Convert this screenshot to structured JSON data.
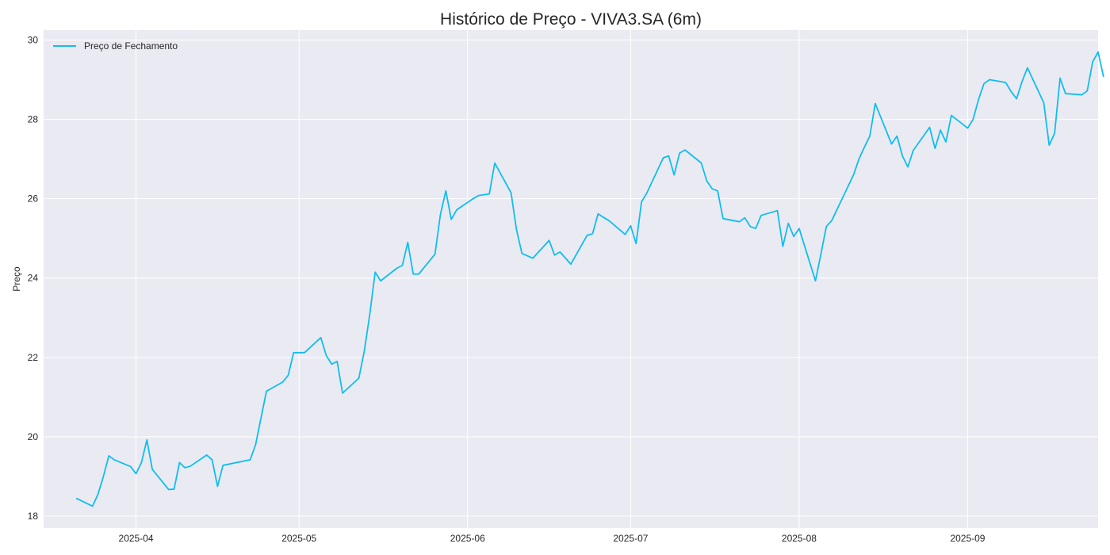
{
  "chart_data": {
    "type": "line",
    "title": "Histórico de Preço - VIVA3.SA (6m)",
    "xlabel": "",
    "ylabel": "Preço",
    "ylim": [
      17.7,
      30.25
    ],
    "xlim": [
      "2025-03-15",
      "2025-09-25"
    ],
    "grid": true,
    "legend_position": "top-left",
    "background_color": "#eaeaf2",
    "grid_color": "#ffffff",
    "y_ticks": [
      18,
      20,
      22,
      24,
      26,
      28,
      30
    ],
    "x_ticks": [
      {
        "date": "2025-04-01",
        "label": "2025-04"
      },
      {
        "date": "2025-05-01",
        "label": "2025-05"
      },
      {
        "date": "2025-06-01",
        "label": "2025-06"
      },
      {
        "date": "2025-07-01",
        "label": "2025-07"
      },
      {
        "date": "2025-08-01",
        "label": "2025-08"
      },
      {
        "date": "2025-09-01",
        "label": "2025-09"
      }
    ],
    "series": [
      {
        "name": "Preço de Fechamento",
        "color": "#10bdf0",
        "points": [
          [
            "2025-03-21",
            18.45
          ],
          [
            "2025-03-24",
            18.25
          ],
          [
            "2025-03-25",
            18.55
          ],
          [
            "2025-03-26",
            19.0
          ],
          [
            "2025-03-27",
            19.52
          ],
          [
            "2025-03-28",
            19.42
          ],
          [
            "2025-03-31",
            19.25
          ],
          [
            "2025-04-01",
            19.07
          ],
          [
            "2025-04-02",
            19.35
          ],
          [
            "2025-04-03",
            19.92
          ],
          [
            "2025-04-04",
            19.18
          ],
          [
            "2025-04-07",
            18.67
          ],
          [
            "2025-04-08",
            18.68
          ],
          [
            "2025-04-09",
            19.35
          ],
          [
            "2025-04-10",
            19.22
          ],
          [
            "2025-04-11",
            19.26
          ],
          [
            "2025-04-14",
            19.54
          ],
          [
            "2025-04-15",
            19.42
          ],
          [
            "2025-04-16",
            18.75
          ],
          [
            "2025-04-17",
            19.28
          ],
          [
            "2025-04-22",
            19.42
          ],
          [
            "2025-04-23",
            19.8
          ],
          [
            "2025-04-24",
            20.48
          ],
          [
            "2025-04-25",
            21.15
          ],
          [
            "2025-04-28",
            21.38
          ],
          [
            "2025-04-29",
            21.55
          ],
          [
            "2025-04-30",
            22.12
          ],
          [
            "2025-05-02",
            22.12
          ],
          [
            "2025-05-05",
            22.5
          ],
          [
            "2025-05-06",
            22.05
          ],
          [
            "2025-05-07",
            21.83
          ],
          [
            "2025-05-08",
            21.9
          ],
          [
            "2025-05-09",
            21.1
          ],
          [
            "2025-05-12",
            21.48
          ],
          [
            "2025-05-13",
            22.16
          ],
          [
            "2025-05-14",
            23.08
          ],
          [
            "2025-05-15",
            24.15
          ],
          [
            "2025-05-16",
            23.93
          ],
          [
            "2025-05-19",
            24.25
          ],
          [
            "2025-05-20",
            24.32
          ],
          [
            "2025-05-21",
            24.9
          ],
          [
            "2025-05-22",
            24.1
          ],
          [
            "2025-05-23",
            24.1
          ],
          [
            "2025-05-26",
            24.6
          ],
          [
            "2025-05-27",
            25.6
          ],
          [
            "2025-05-28",
            26.2
          ],
          [
            "2025-05-29",
            25.48
          ],
          [
            "2025-05-30",
            25.72
          ],
          [
            "2025-06-02",
            26.0
          ],
          [
            "2025-06-03",
            26.08
          ],
          [
            "2025-06-05",
            26.12
          ],
          [
            "2025-06-06",
            26.9
          ],
          [
            "2025-06-09",
            26.15
          ],
          [
            "2025-06-10",
            25.22
          ],
          [
            "2025-06-11",
            24.62
          ],
          [
            "2025-06-13",
            24.5
          ],
          [
            "2025-06-16",
            24.95
          ],
          [
            "2025-06-17",
            24.58
          ],
          [
            "2025-06-18",
            24.66
          ],
          [
            "2025-06-20",
            24.35
          ],
          [
            "2025-06-23",
            25.08
          ],
          [
            "2025-06-24",
            25.12
          ],
          [
            "2025-06-25",
            25.62
          ],
          [
            "2025-06-26",
            25.53
          ],
          [
            "2025-06-27",
            25.45
          ],
          [
            "2025-06-30",
            25.1
          ],
          [
            "2025-07-01",
            25.32
          ],
          [
            "2025-07-02",
            24.87
          ],
          [
            "2025-07-03",
            25.92
          ],
          [
            "2025-07-04",
            26.15
          ],
          [
            "2025-07-07",
            27.03
          ],
          [
            "2025-07-08",
            27.08
          ],
          [
            "2025-07-09",
            26.6
          ],
          [
            "2025-07-10",
            27.15
          ],
          [
            "2025-07-11",
            27.23
          ],
          [
            "2025-07-14",
            26.9
          ],
          [
            "2025-07-15",
            26.45
          ],
          [
            "2025-07-16",
            26.25
          ],
          [
            "2025-07-17",
            26.2
          ],
          [
            "2025-07-18",
            25.5
          ],
          [
            "2025-07-21",
            25.42
          ],
          [
            "2025-07-22",
            25.52
          ],
          [
            "2025-07-23",
            25.3
          ],
          [
            "2025-07-24",
            25.25
          ],
          [
            "2025-07-25",
            25.58
          ],
          [
            "2025-07-28",
            25.7
          ],
          [
            "2025-07-29",
            24.8
          ],
          [
            "2025-07-30",
            25.38
          ],
          [
            "2025-07-31",
            25.05
          ],
          [
            "2025-08-01",
            25.25
          ],
          [
            "2025-08-04",
            23.93
          ],
          [
            "2025-08-05",
            24.6
          ],
          [
            "2025-08-06",
            25.3
          ],
          [
            "2025-08-07",
            25.45
          ],
          [
            "2025-08-11",
            26.6
          ],
          [
            "2025-08-12",
            27.0
          ],
          [
            "2025-08-13",
            27.3
          ],
          [
            "2025-08-14",
            27.58
          ],
          [
            "2025-08-15",
            28.4
          ],
          [
            "2025-08-18",
            27.38
          ],
          [
            "2025-08-19",
            27.58
          ],
          [
            "2025-08-20",
            27.08
          ],
          [
            "2025-08-21",
            26.8
          ],
          [
            "2025-08-22",
            27.22
          ],
          [
            "2025-08-25",
            27.8
          ],
          [
            "2025-08-26",
            27.27
          ],
          [
            "2025-08-27",
            27.73
          ],
          [
            "2025-08-28",
            27.43
          ],
          [
            "2025-08-29",
            28.1
          ],
          [
            "2025-09-01",
            27.78
          ],
          [
            "2025-09-02",
            28.0
          ],
          [
            "2025-09-03",
            28.5
          ],
          [
            "2025-09-04",
            28.9
          ],
          [
            "2025-09-05",
            29.0
          ],
          [
            "2025-09-08",
            28.93
          ],
          [
            "2025-09-09",
            28.7
          ],
          [
            "2025-09-10",
            28.52
          ],
          [
            "2025-09-11",
            28.95
          ],
          [
            "2025-09-12",
            29.3
          ],
          [
            "2025-09-15",
            28.42
          ],
          [
            "2025-09-16",
            27.35
          ],
          [
            "2025-09-17",
            27.65
          ],
          [
            "2025-09-18",
            29.04
          ],
          [
            "2025-09-19",
            28.65
          ],
          [
            "2025-09-22",
            28.62
          ],
          [
            "2025-09-23",
            28.72
          ],
          [
            "2025-09-24",
            29.45
          ],
          [
            "2025-09-25",
            29.7
          ],
          [
            "2025-09-26",
            29.07
          ]
        ]
      }
    ]
  }
}
